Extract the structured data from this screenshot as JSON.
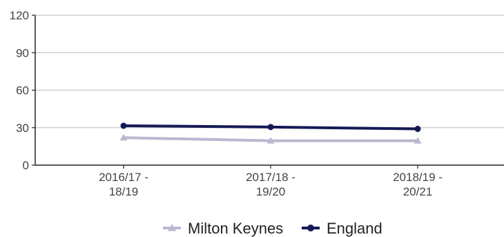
{
  "chart_data": {
    "type": "line",
    "title": "",
    "xlabel": "",
    "ylabel": "",
    "categories": [
      [
        "2016/17 -",
        "18/19"
      ],
      [
        "2017/18 -",
        "19/20"
      ],
      [
        "2018/19 -",
        "20/21"
      ]
    ],
    "ylim": [
      0,
      120
    ],
    "yticks": [
      "0",
      "30",
      "60",
      "90",
      "120"
    ],
    "grid": "horizontal",
    "legend_position": "bottom",
    "series": [
      {
        "name": "Milton Keynes",
        "values": [
          22,
          19.5,
          19.5
        ],
        "color": "#b8b8d1",
        "marker": "triangle"
      },
      {
        "name": "England",
        "values": [
          31.5,
          30.5,
          29
        ],
        "color": "#141a55",
        "marker": "circle"
      }
    ]
  }
}
